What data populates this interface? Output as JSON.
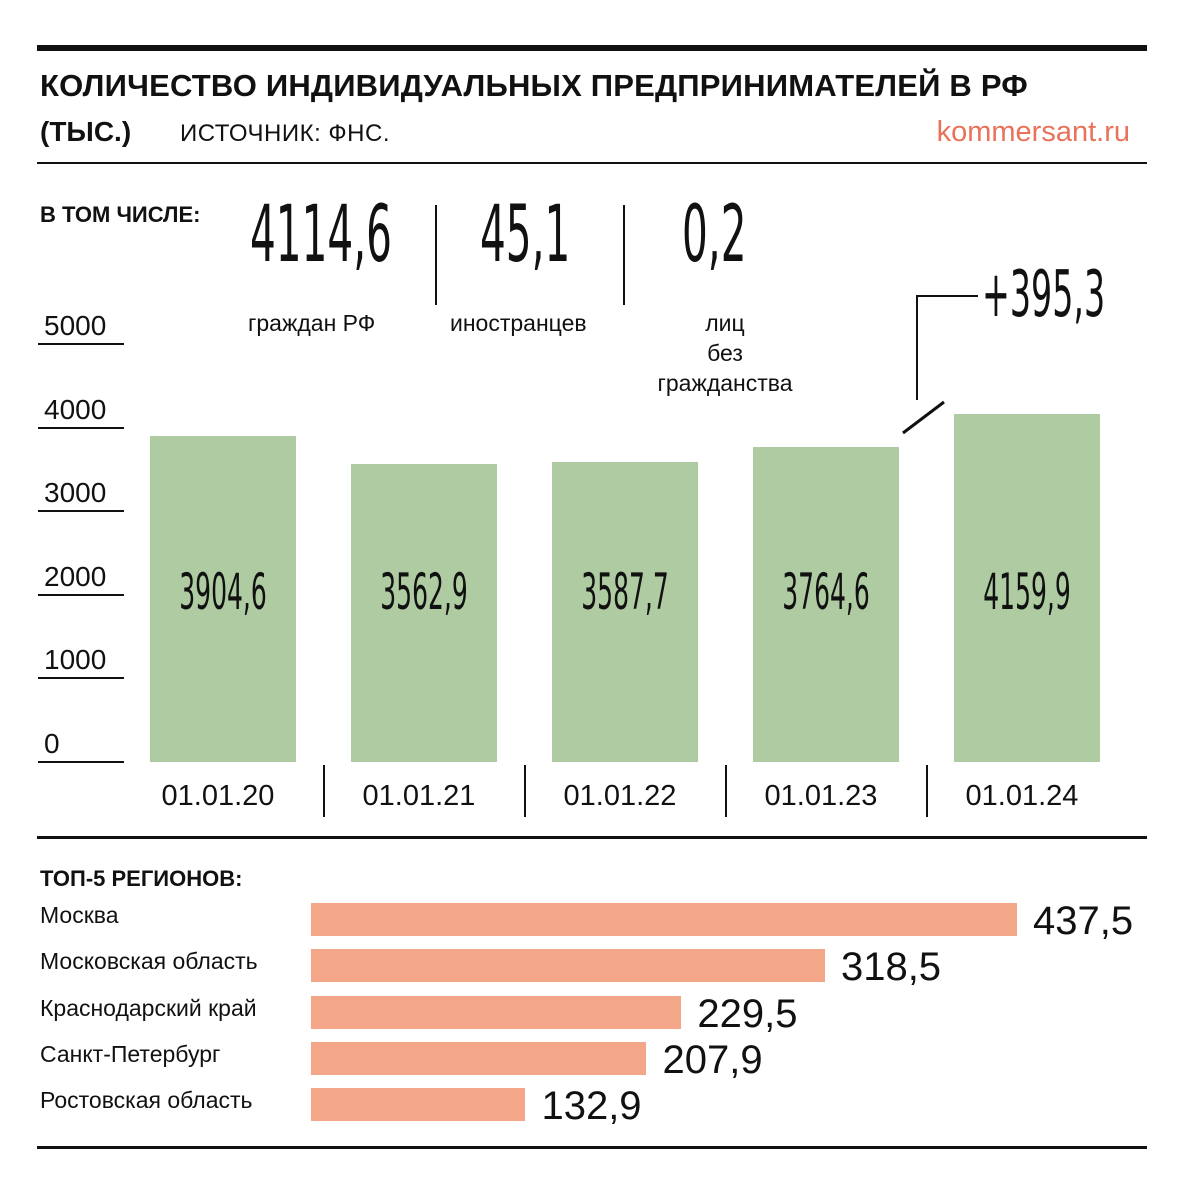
{
  "header": {
    "title": "КОЛИЧЕСТВО ИНДИВИДУАЛЬНЫХ ПРЕДПРИНИМАТЕЛЕЙ В РФ",
    "unit": "(ТЫС.)",
    "source": "ИСТОЧНИК: ФНС.",
    "brand": "kommersant.ru"
  },
  "breakdown": {
    "label": "В ТОМ ЧИСЛЕ:",
    "items": [
      {
        "value": "4114,6",
        "lines": [
          "граждан РФ"
        ]
      },
      {
        "value": "45,1",
        "lines": [
          "иностранцев"
        ]
      },
      {
        "value": "0,2",
        "lines": [
          "лиц",
          "без",
          "гражданства"
        ]
      }
    ]
  },
  "chart_data": [
    {
      "type": "bar",
      "title": "КОЛИЧЕСТВО ИНДИВИДУАЛЬНЫХ ПРЕДПРИНИМАТЕЛЕЙ В РФ",
      "categories": [
        "01.01.20",
        "01.01.21",
        "01.01.22",
        "01.01.23",
        "01.01.24"
      ],
      "values": [
        3904.6,
        3562.9,
        3587.7,
        3764.6,
        4159.9
      ],
      "value_labels": [
        "3904,6",
        "3562,9",
        "3587,7",
        "3764,6",
        "4159,9"
      ],
      "yticks": [
        "0",
        "1000",
        "2000",
        "3000",
        "4000",
        "5000"
      ],
      "ylim": [
        0,
        5000
      ],
      "bar_color": "#aecba1",
      "annotation": "+395,3",
      "grid": false
    },
    {
      "type": "bar",
      "orientation": "horizontal",
      "title": "ТОП-5 РЕГИОНОВ:",
      "categories": [
        "Москва",
        "Московская область",
        "Краснодарский край",
        "Санкт-Петербург",
        "Ростовская область"
      ],
      "values": [
        437.5,
        318.5,
        229.5,
        207.9,
        132.9
      ],
      "value_labels": [
        "437,5",
        "318,5",
        "229,5",
        "207,9",
        "132,9"
      ],
      "bar_color": "#f4a689"
    }
  ]
}
